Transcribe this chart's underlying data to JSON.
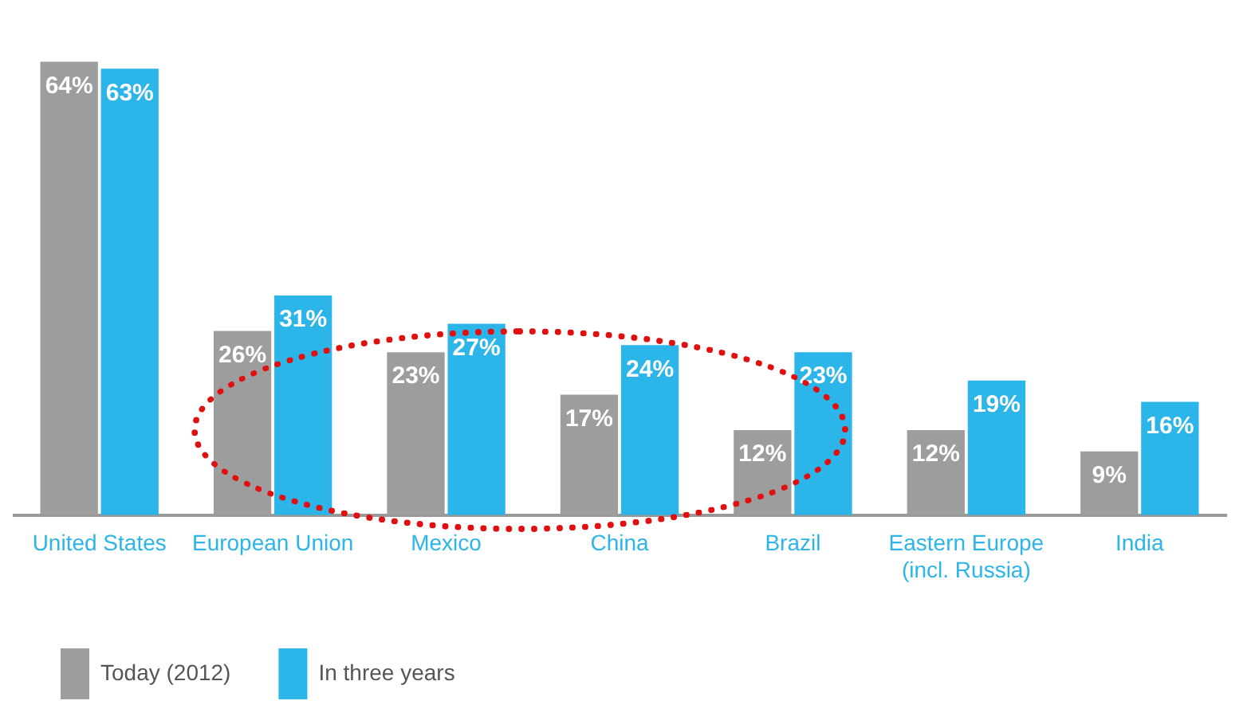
{
  "chart_data": {
    "type": "bar",
    "categories": [
      "United States",
      "European Union",
      "Mexico",
      "China",
      "Brazil",
      "Eastern Europe (incl. Russia)",
      "India"
    ],
    "series": [
      {
        "name": "Today (2012)",
        "color": "#9d9d9d",
        "values": [
          64,
          26,
          23,
          17,
          12,
          12,
          9
        ],
        "value_labels": [
          "64%",
          "26%",
          "23%",
          "17%",
          "12%",
          "12%",
          "9%"
        ]
      },
      {
        "name": "In three years",
        "color": "#2cb5e8",
        "values": [
          63,
          31,
          27,
          24,
          23,
          19,
          16
        ],
        "value_labels": [
          "63%",
          "31%",
          "27%",
          "24%",
          "23%",
          "19%",
          "16%"
        ]
      }
    ],
    "legend": "bottom left",
    "grid": false
  }
}
